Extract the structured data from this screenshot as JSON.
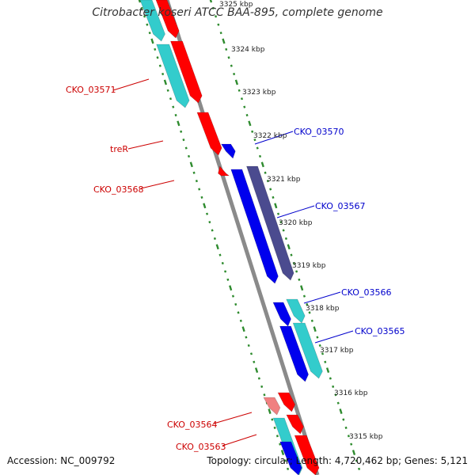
{
  "title": "Citrobacter koseri ATCC BAA-895, complete genome",
  "footer": {
    "accession": "Accession: NC_009792",
    "topology": "Topology: circular; Length: 4,720,462 bp; Genes: 5,121"
  },
  "colors": {
    "background": "#ffffff",
    "axis": "#8a8a8a",
    "tick": "#2e8b2e",
    "gene_red": "#ff0000",
    "gene_pink": "#f08080",
    "gene_cyan": "#33cccc",
    "gene_blue": "#0000ee",
    "gene_purple": "#4b4b8f",
    "label_forward": "#cc0000",
    "label_reverse": "#0000cc"
  },
  "kbp_markers": [
    "3315 kbp",
    "3316 kbp",
    "3317 kbp",
    "3318 kbp",
    "3319 kbp",
    "3320 kbp",
    "3321 kbp",
    "3322 kbp",
    "3323 kbp",
    "3324 kbp",
    "3325 kbp"
  ],
  "gene_labels": {
    "left": [
      "CKO_03571",
      "treR",
      "CKO_03568",
      "CKO_03564",
      "CKO_03563"
    ],
    "right": [
      "CKO_03570",
      "CKO_03567",
      "CKO_03566",
      "CKO_03565"
    ]
  }
}
